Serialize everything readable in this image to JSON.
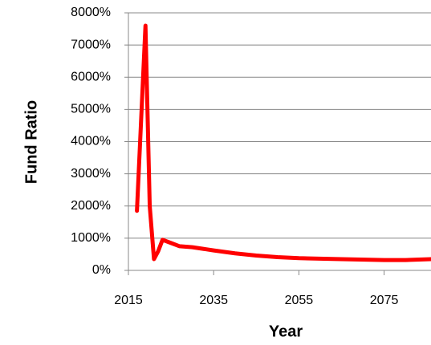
{
  "chart_data": {
    "type": "line",
    "x_label": "Year",
    "y_label": "Fund Ratio",
    "x": [
      2017,
      2019,
      2020,
      2021,
      2022,
      2023,
      2025,
      2027,
      2030,
      2035,
      2040,
      2045,
      2050,
      2055,
      2065,
      2075,
      2080,
      2086
    ],
    "series": [
      {
        "color": "#ff0000",
        "values": [
          1850,
          7600,
          2000,
          350,
          600,
          950,
          850,
          750,
          720,
          620,
          530,
          460,
          410,
          380,
          350,
          320,
          320,
          350
        ]
      }
    ],
    "xlim": [
      2015,
      2086
    ],
    "xticks": [
      2015,
      2035,
      2055,
      2075
    ],
    "ylim": [
      0,
      8000
    ],
    "yticks": [
      {
        "value": 0,
        "label": "0%"
      },
      {
        "value": 1000,
        "label": "1000%"
      },
      {
        "value": 2000,
        "label": "2000%"
      },
      {
        "value": 3000,
        "label": "3000%"
      },
      {
        "value": 4000,
        "label": "4000%"
      },
      {
        "value": 5000,
        "label": "5000%"
      },
      {
        "value": 6000,
        "label": "6000%"
      },
      {
        "value": 7000,
        "label": "7000%"
      },
      {
        "value": 8000,
        "label": "8000%"
      }
    ],
    "grid": true
  }
}
